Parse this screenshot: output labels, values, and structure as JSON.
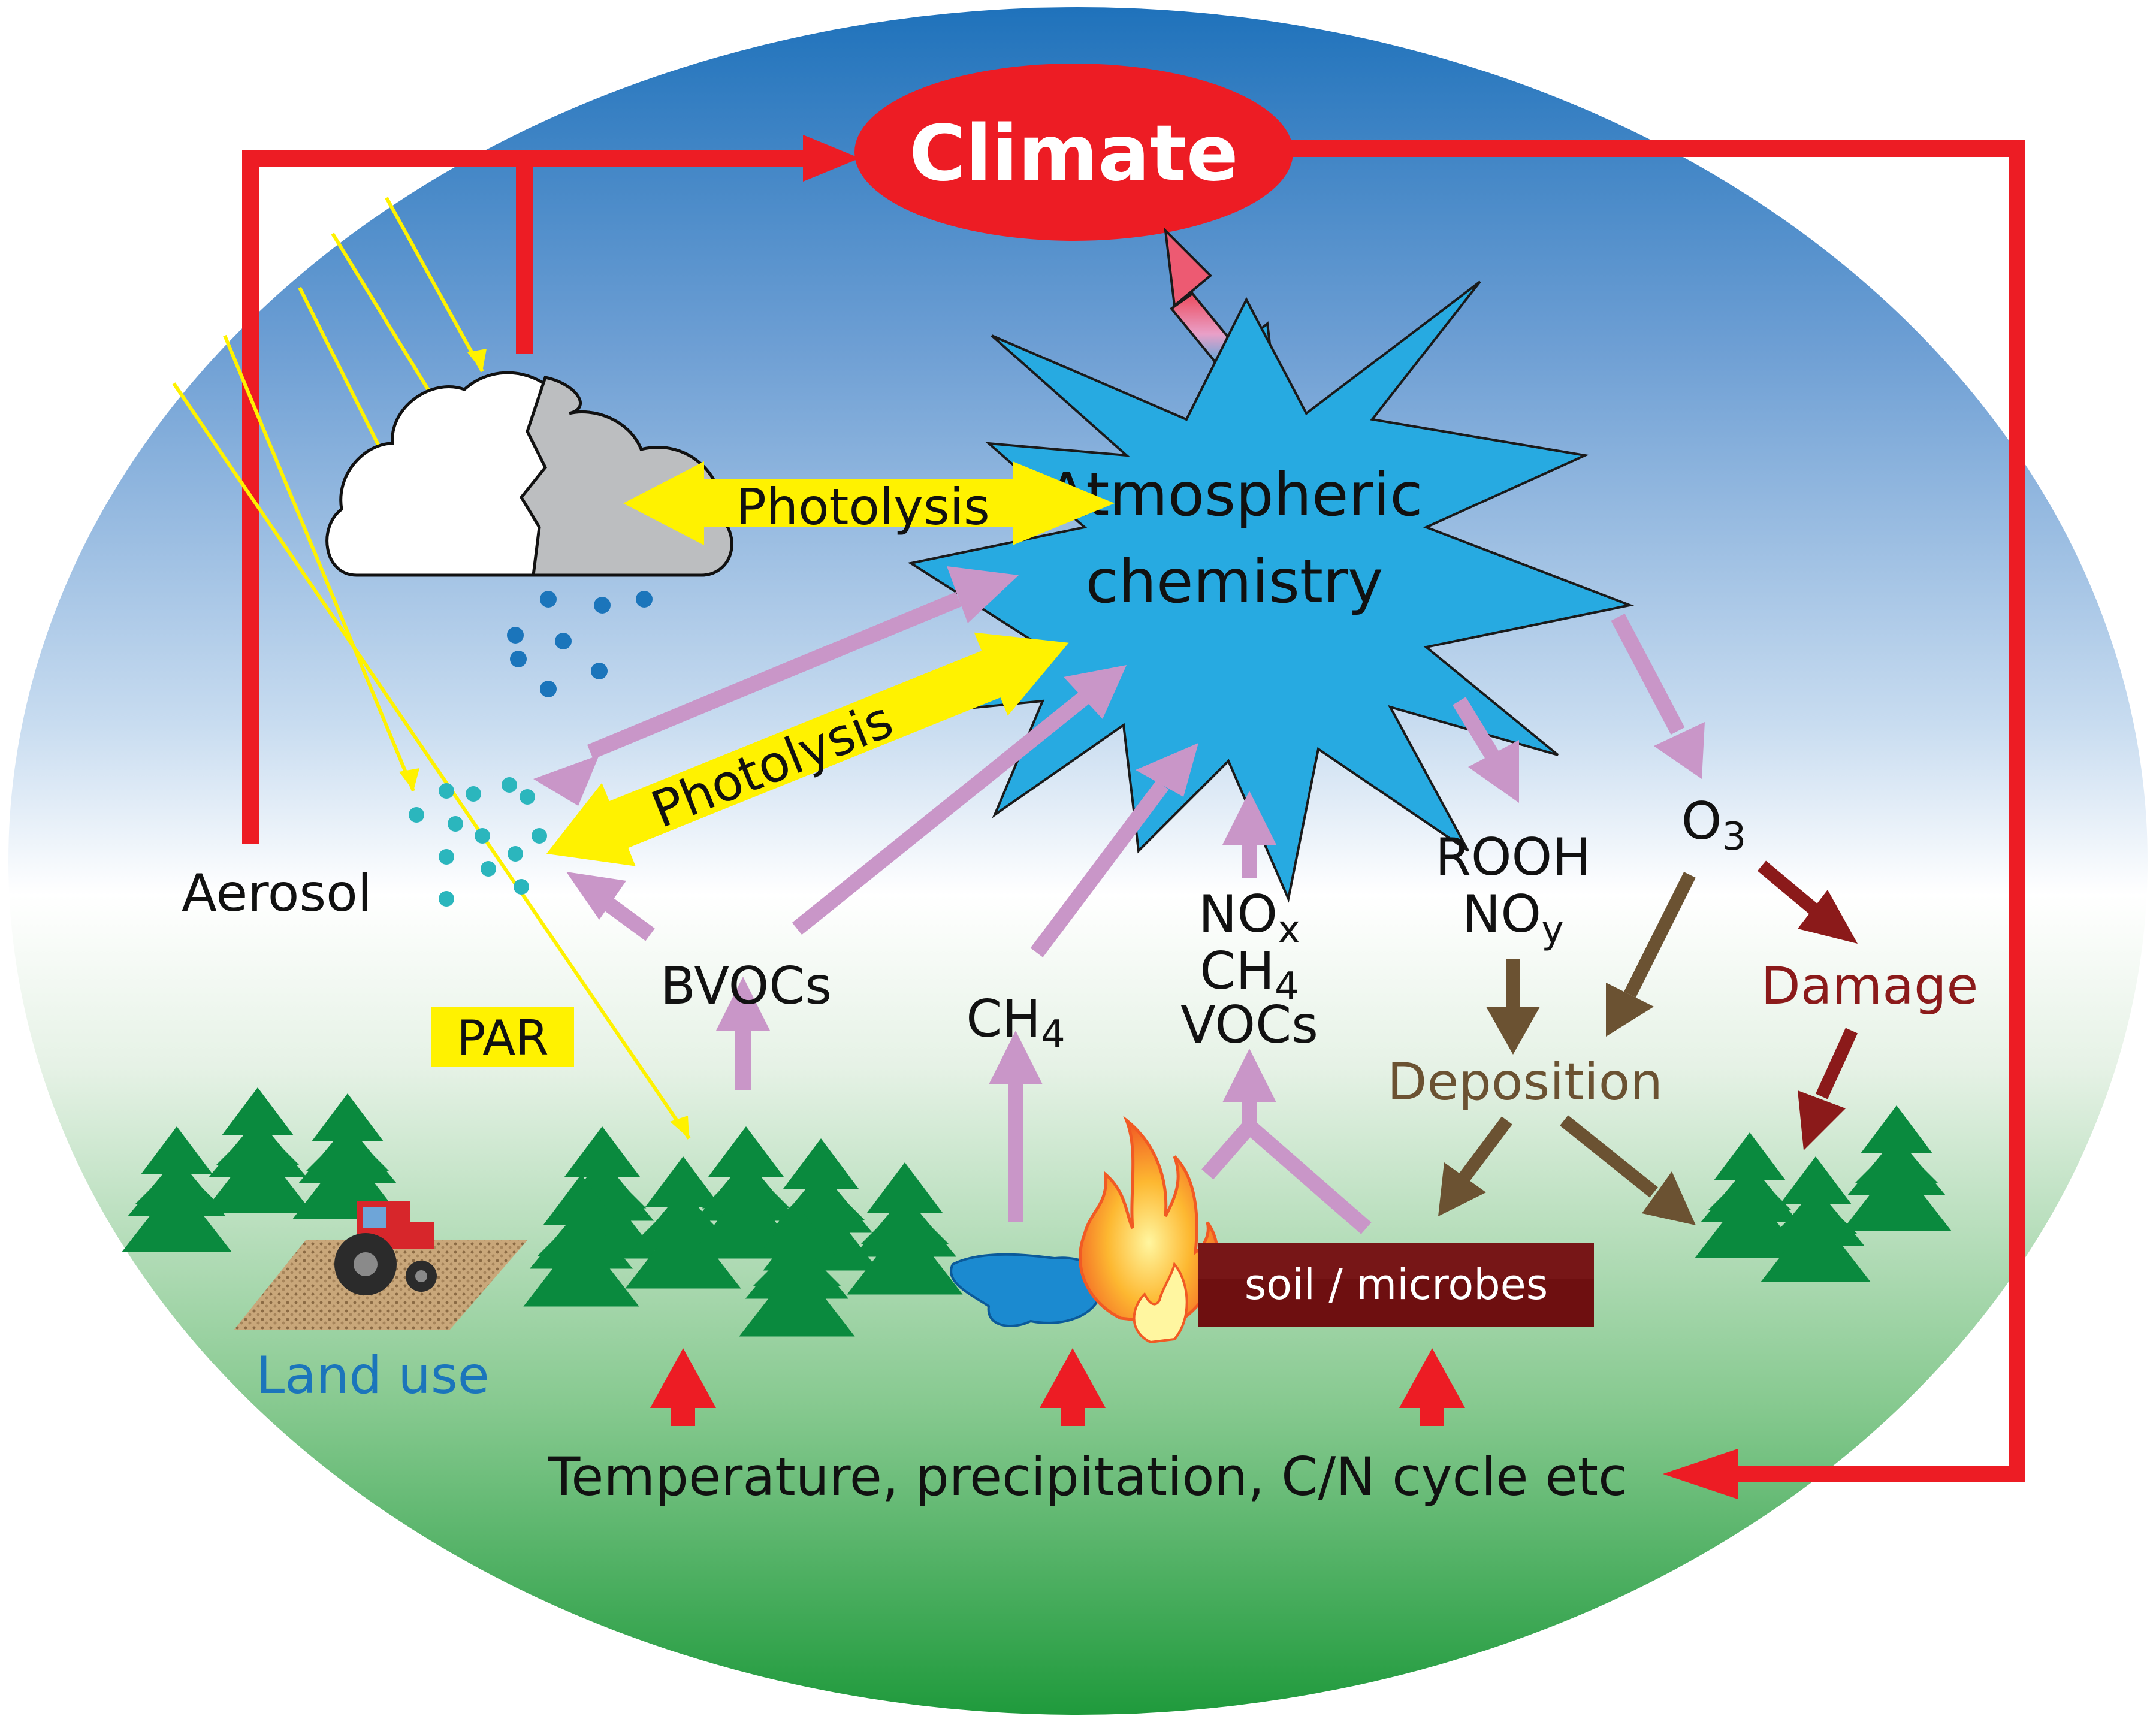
{
  "labels": {
    "climate": "Climate",
    "atm_line1": "Atmospheric",
    "atm_line2": "chemistry",
    "photolysis_upper": "Photolysis",
    "photolysis_lower": "Photolysis",
    "aerosol": "Aerosol",
    "par": "PAR",
    "bvocs": "BVOCs",
    "ch4_base": "CH",
    "ch4_sub": "4",
    "nox_base": "NO",
    "nox_sub": "x",
    "ch4b_base": "CH",
    "ch4b_sub": "4",
    "vocs": "VOCs",
    "rooh": "ROOH",
    "noy_base": "NO",
    "noy_sub": "y",
    "o3_base": "O",
    "o3_sub": "3",
    "damage": "Damage",
    "deposition": "Deposition",
    "soil": "soil / microbes",
    "land_use": "Land use",
    "temperature": "Temperature, precipitation, C/N cycle etc"
  },
  "icons": [
    "cloud-icon",
    "rain-drop-icon",
    "aerosol-particle-icon",
    "tree-icon",
    "tractor-icon",
    "field-icon",
    "lake-icon",
    "fire-icon",
    "sun-ray-icon"
  ],
  "colors": {
    "climate_red": "#ed1c24",
    "sky_blue": "#2e7fc4",
    "atm_blue": "#27aae1",
    "photolysis_yellow": "#fff200",
    "emission_purple": "#c996c8",
    "deposition_brown": "#6b5232",
    "damage_darkred": "#8b1a1a",
    "tree_green": "#0a8a3e",
    "trunk_brown": "#9a4a2a",
    "soil_box": "#6e0f10",
    "ground_green": "#2e9e48",
    "land_use_blue": "#1b75bb"
  }
}
